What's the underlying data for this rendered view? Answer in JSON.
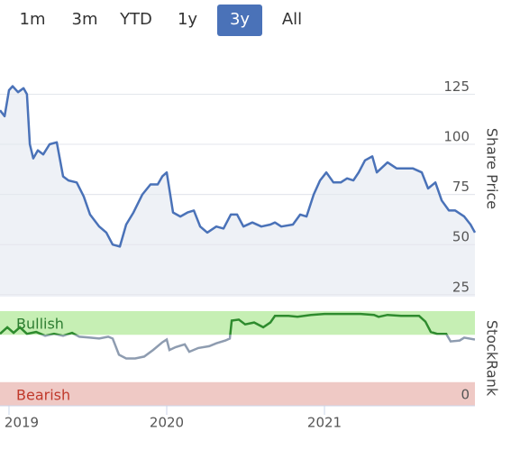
{
  "range_buttons": {
    "options": [
      "1m",
      "3m",
      "YTD",
      "1y",
      "3y",
      "All"
    ],
    "selected": 4
  },
  "chart_data": [
    {
      "type": "area",
      "axis_label": "Share Price",
      "color": "#4a72b8",
      "fill": "#eef1f6",
      "xlim": [
        2018.943,
        2021.954
      ],
      "ylim": [
        24,
        154
      ],
      "yticks": [
        25,
        50,
        75,
        100,
        125
      ],
      "grid": true,
      "x": [
        2018.943,
        2018.972,
        2019.0,
        2019.023,
        2019.057,
        2019.092,
        2019.114,
        2019.132,
        2019.154,
        2019.183,
        2019.217,
        2019.257,
        2019.303,
        2019.343,
        2019.377,
        2019.429,
        2019.474,
        2019.514,
        2019.572,
        2019.617,
        2019.657,
        2019.703,
        2019.743,
        2019.789,
        2019.846,
        2019.897,
        2019.943,
        2019.972,
        2020.0,
        2020.04,
        2020.086,
        2020.132,
        2020.172,
        2020.212,
        2020.257,
        2020.314,
        2020.36,
        2020.406,
        2020.446,
        2020.486,
        2020.543,
        2020.6,
        2020.657,
        2020.686,
        2020.726,
        2020.8,
        2020.846,
        2020.886,
        2020.932,
        2020.972,
        2021.012,
        2021.057,
        2021.103,
        2021.143,
        2021.183,
        2021.217,
        2021.257,
        2021.303,
        2021.332,
        2021.4,
        2021.457,
        2021.514,
        2021.56,
        2021.617,
        2021.657,
        2021.703,
        2021.743,
        2021.789,
        2021.829,
        2021.886,
        2021.926,
        2021.954
      ],
      "values": [
        117,
        114,
        127,
        129,
        126,
        128,
        125,
        100,
        93,
        97,
        95,
        100,
        101,
        84,
        82,
        81,
        74,
        65,
        59,
        56,
        50,
        49,
        60,
        66,
        75,
        80,
        80,
        84,
        86,
        66,
        64,
        66,
        67,
        59,
        56,
        59,
        58,
        65,
        65,
        59,
        61,
        59,
        60,
        61,
        59,
        60,
        65,
        64,
        75,
        82,
        86,
        81,
        81,
        83,
        82,
        86,
        92,
        94,
        86,
        91,
        88,
        88,
        88,
        86,
        78,
        81,
        72,
        67,
        67,
        64,
        60,
        56
      ]
    },
    {
      "type": "line",
      "axis_label": "StockRank",
      "color": "#8e9cb0",
      "bullish_color": "#2e8b2e",
      "xlim": [
        2018.943,
        2021.954
      ],
      "xticks": [
        2019,
        2020,
        2021
      ],
      "ylim": [
        0,
        100
      ],
      "yticks": [
        0
      ],
      "bands": [
        {
          "label": "Bullish",
          "range": [
            75,
            100
          ],
          "color": "#c6efb4",
          "text_color": "#2e7d32"
        },
        {
          "label": "Bearish",
          "range": [
            0,
            25
          ],
          "color": "#efc9c5",
          "text_color": "#c0392b"
        }
      ],
      "x": [
        2018.943,
        2018.989,
        2019.029,
        2019.069,
        2019.114,
        2019.172,
        2019.229,
        2019.286,
        2019.343,
        2019.4,
        2019.446,
        2019.514,
        2019.572,
        2019.629,
        2019.657,
        2019.697,
        2019.743,
        2019.8,
        2019.857,
        2019.914,
        2019.972,
        2020.0,
        2020.017,
        2020.057,
        2020.114,
        2020.143,
        2020.2,
        2020.269,
        2020.314,
        2020.372,
        2020.4,
        2020.412,
        2020.457,
        2020.497,
        2020.554,
        2020.612,
        2020.657,
        2020.686,
        2020.772,
        2020.829,
        2020.914,
        2021.0,
        2021.114,
        2021.229,
        2021.314,
        2021.343,
        2021.4,
        2021.486,
        2021.6,
        2021.64,
        2021.674,
        2021.714,
        2021.772,
        2021.8,
        2021.857,
        2021.886,
        2021.954
      ],
      "values": [
        76,
        83,
        77,
        83,
        76,
        78,
        74,
        76,
        74,
        77,
        73,
        72,
        71,
        73,
        71,
        54,
        50,
        50,
        52,
        59,
        67,
        70,
        59,
        62,
        65,
        57,
        61,
        63,
        66,
        69,
        71,
        90,
        91,
        86,
        88,
        83,
        88,
        95,
        95,
        94,
        96,
        97,
        97,
        97,
        96,
        94,
        96,
        95,
        95,
        89,
        78,
        76,
        76,
        68,
        69,
        72,
        70
      ]
    }
  ]
}
